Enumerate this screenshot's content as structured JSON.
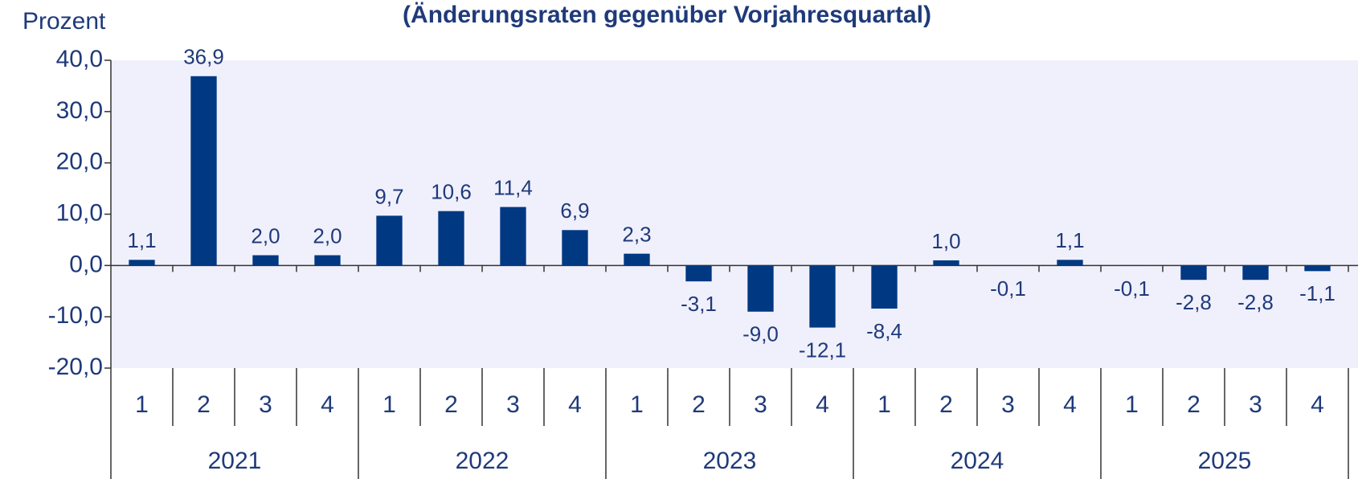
{
  "chart_data": {
    "type": "bar",
    "title": "(Änderungsraten gegenüber Vorjahresquartal)",
    "y_label": "Prozent",
    "categories": [
      "1",
      "2",
      "3",
      "4",
      "1",
      "2",
      "3",
      "4",
      "1",
      "2",
      "3",
      "4",
      "1",
      "2",
      "3",
      "4",
      "1",
      "2",
      "3",
      "4"
    ],
    "groups": [
      "2021",
      "2022",
      "2023",
      "2024",
      "2025"
    ],
    "values": [
      1.1,
      36.9,
      2.0,
      2.0,
      9.7,
      10.6,
      11.4,
      6.9,
      2.3,
      -3.1,
      -9.0,
      -12.1,
      -8.4,
      1.0,
      -0.1,
      1.1,
      -0.1,
      -2.8,
      -2.8,
      -1.1
    ],
    "value_labels": [
      "1,1",
      "36,9",
      "2,0",
      "2,0",
      "9,7",
      "10,6",
      "11,4",
      "6,9",
      "2,3",
      "-3,1",
      "-9,0",
      "-12,1",
      "-8,4",
      "1,0",
      "-0,1",
      "1,1",
      "-0,1",
      "-2,8",
      "-2,8",
      "-1,1"
    ],
    "color": "#003882",
    "ylim": [
      -20,
      40
    ],
    "yticks": [
      {
        "value": -20,
        "label": "-20,0"
      },
      {
        "value": -10,
        "label": "-10,0"
      },
      {
        "value": 0,
        "label": "0,0"
      },
      {
        "value": 10,
        "label": "10,0"
      },
      {
        "value": 20,
        "label": "20,0"
      },
      {
        "value": 30,
        "label": "30,0"
      },
      {
        "value": 40,
        "label": "40,0"
      }
    ],
    "grid": false
  }
}
